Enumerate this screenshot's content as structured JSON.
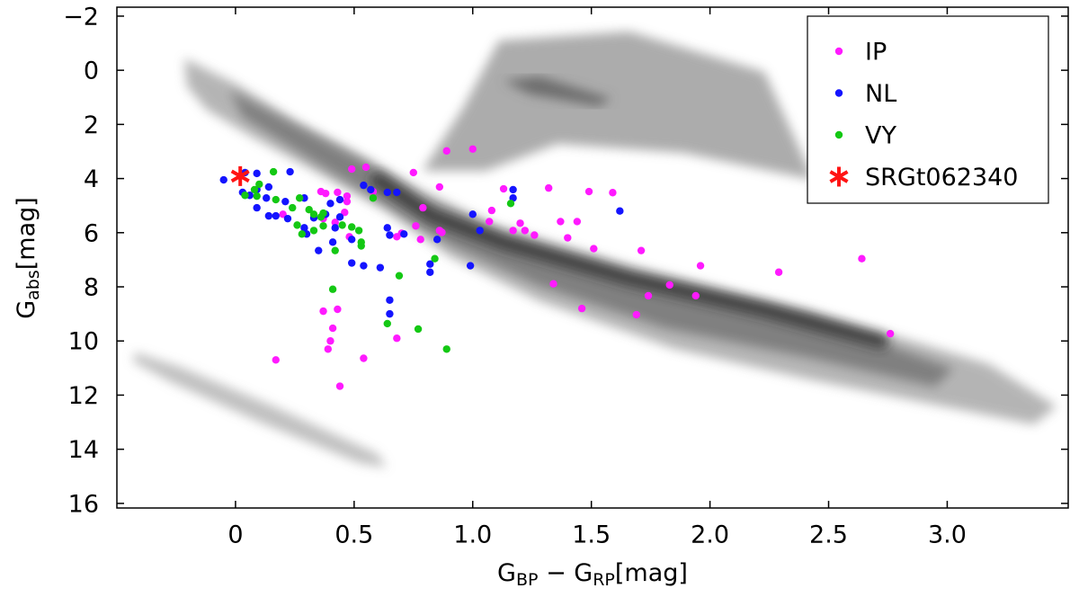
{
  "chart_data": {
    "type": "scatter",
    "xlabel": [
      "G",
      "BP",
      " − G",
      "RP",
      "[mag]"
    ],
    "ylabel": [
      "G",
      "abs",
      "[mag]"
    ],
    "xlim": [
      -0.5,
      3.51
    ],
    "ylim": [
      -2.33,
      16.17
    ],
    "y_inverted": true,
    "xticks": [
      0,
      0.5,
      {
        "value": 1,
        "label": "1.0"
      },
      1.5,
      {
        "value": 2,
        "label": "2.0"
      },
      2.5,
      {
        "value": 3,
        "label": "3.0"
      }
    ],
    "yticks": [
      {
        "value": -2,
        "label": "−2"
      },
      0,
      2,
      4,
      6,
      8,
      10,
      12,
      14,
      16
    ],
    "grid": false,
    "legend": "upper right",
    "series": [
      {
        "name": "IP",
        "color": "#ff1aff",
        "marker": "dot",
        "x": [
          0.89,
          1.0,
          0.75,
          0.55,
          0.49,
          0.86,
          1.13,
          1.32,
          1.49,
          1.59,
          0.36,
          0.38,
          0.43,
          0.47,
          0.58,
          0.79,
          0.47,
          0.46,
          1.08,
          1.07,
          0.2,
          0.37,
          0.42,
          0.48,
          0.76,
          0.87,
          0.86,
          0.68,
          0.7,
          0.78,
          1.2,
          1.22,
          1.26,
          1.37,
          1.44,
          1.4,
          1.17,
          1.51,
          1.71,
          1.96,
          2.29,
          2.64,
          1.34,
          1.83,
          1.74,
          1.94,
          1.46,
          1.69,
          2.76,
          0.37,
          0.43,
          0.41,
          0.4,
          0.39,
          0.68,
          0.17,
          0.54,
          0.44
        ],
        "y": [
          2.98,
          2.91,
          3.78,
          3.58,
          3.65,
          4.31,
          4.38,
          4.35,
          4.48,
          4.52,
          4.48,
          4.55,
          4.51,
          4.65,
          4.48,
          5.08,
          4.85,
          5.25,
          5.18,
          5.59,
          5.32,
          5.48,
          5.62,
          6.15,
          5.75,
          5.99,
          5.92,
          6.15,
          6.02,
          6.25,
          5.65,
          5.92,
          6.09,
          5.59,
          5.59,
          6.19,
          5.92,
          6.59,
          6.66,
          7.22,
          7.46,
          6.96,
          7.89,
          7.93,
          8.33,
          8.33,
          8.8,
          9.03,
          9.73,
          8.9,
          8.83,
          9.53,
          10.0,
          10.3,
          9.9,
          10.7,
          10.64,
          11.67
        ]
      },
      {
        "name": "NL",
        "color": "#1414ff",
        "marker": "dot",
        "x": [
          -0.05,
          0.04,
          0.09,
          0.23,
          0.09,
          0.03,
          0.06,
          0.14,
          0.13,
          0.09,
          0.14,
          0.17,
          0.21,
          0.22,
          0.29,
          0.29,
          0.3,
          0.33,
          0.38,
          0.4,
          0.44,
          0.44,
          0.35,
          0.41,
          0.42,
          0.49,
          0.49,
          0.54,
          0.61,
          0.54,
          0.57,
          0.64,
          0.68,
          0.64,
          0.65,
          0.71,
          0.82,
          0.82,
          0.85,
          0.65,
          0.65,
          0.99,
          1.0,
          1.03,
          1.17,
          1.17,
          1.62
        ],
        "y": [
          4.05,
          3.78,
          3.81,
          3.75,
          4.41,
          4.51,
          4.62,
          4.31,
          4.72,
          5.08,
          5.38,
          5.38,
          4.85,
          5.48,
          4.72,
          5.82,
          6.05,
          5.45,
          5.32,
          4.92,
          4.78,
          5.42,
          6.66,
          6.35,
          5.82,
          6.25,
          7.12,
          7.22,
          7.29,
          4.25,
          4.41,
          4.51,
          4.51,
          5.82,
          6.09,
          6.05,
          7.16,
          7.46,
          6.25,
          8.49,
          9.0,
          7.22,
          5.32,
          5.92,
          4.41,
          4.72,
          5.2
        ]
      },
      {
        "name": "VY",
        "color": "#14c814",
        "marker": "dot",
        "x": [
          0.16,
          0.1,
          0.08,
          0.04,
          0.09,
          0.17,
          0.24,
          0.27,
          0.31,
          0.33,
          0.36,
          0.37,
          0.26,
          0.28,
          0.33,
          0.37,
          0.45,
          0.49,
          0.52,
          0.53,
          0.53,
          0.42,
          0.58,
          0.41,
          0.69,
          0.84,
          1.16,
          0.64,
          0.77,
          0.89
        ],
        "y": [
          3.75,
          4.21,
          4.41,
          4.62,
          4.65,
          4.78,
          5.08,
          4.72,
          5.15,
          5.32,
          5.42,
          5.28,
          5.72,
          6.05,
          5.92,
          5.75,
          5.72,
          5.79,
          5.92,
          6.35,
          6.49,
          6.66,
          4.72,
          8.09,
          7.59,
          6.96,
          4.92,
          9.36,
          9.56,
          10.3
        ]
      },
      {
        "name": "SRGt062340",
        "color": "#ff1414",
        "marker": "star",
        "x": [
          0.02
        ],
        "y": [
          3.91
        ]
      }
    ]
  }
}
